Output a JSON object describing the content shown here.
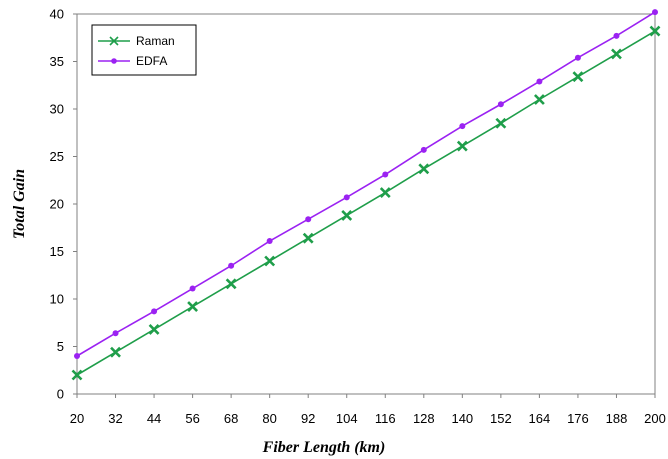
{
  "chart_data": {
    "type": "line",
    "title": "",
    "xlabel": "Fiber Length (km)",
    "ylabel": "Total Gain",
    "x": [
      20,
      32,
      44,
      56,
      68,
      80,
      92,
      104,
      116,
      128,
      140,
      152,
      164,
      176,
      188,
      200
    ],
    "ylim": [
      0,
      40
    ],
    "yticks": [
      0,
      5,
      10,
      15,
      20,
      25,
      30,
      35,
      40
    ],
    "grid": false,
    "legend_position": "top-left",
    "series": [
      {
        "name": "Raman",
        "color": "#1f9e4a",
        "marker": "x",
        "values": [
          2.0,
          4.4,
          6.8,
          9.2,
          11.6,
          14.0,
          16.4,
          18.8,
          21.2,
          23.7,
          26.1,
          28.5,
          31.0,
          33.4,
          35.8,
          38.2
        ]
      },
      {
        "name": "EDFA",
        "color": "#9b22f2",
        "marker": "dot",
        "values": [
          4.0,
          6.4,
          8.7,
          11.1,
          13.5,
          16.1,
          18.4,
          20.7,
          23.1,
          25.7,
          28.2,
          30.5,
          32.9,
          35.4,
          37.7,
          40.2
        ]
      }
    ]
  }
}
